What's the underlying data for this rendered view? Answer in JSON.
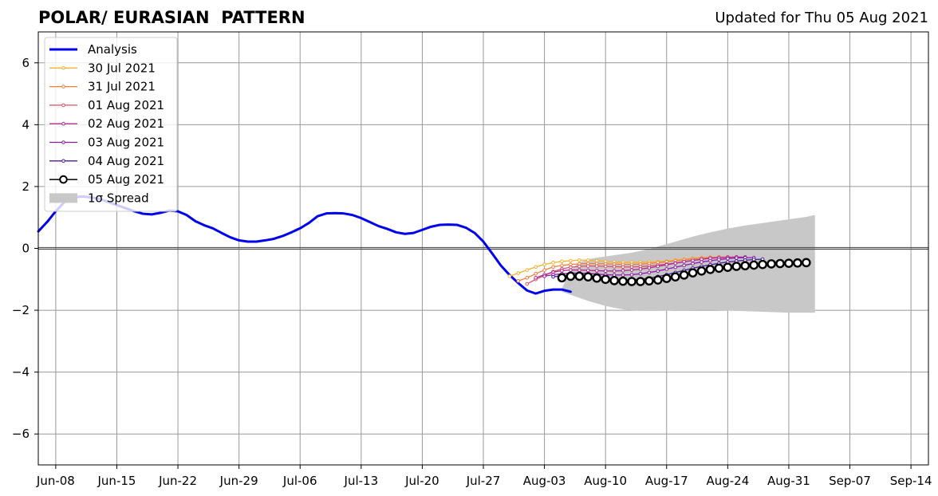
{
  "header": {
    "title": "POLAR/ EURASIAN  PATTERN",
    "updated": "Updated for Thu 05 Aug 2021"
  },
  "chart_data": {
    "type": "line",
    "title": "POLAR/ EURASIAN  PATTERN",
    "subtitle": "Updated for Thu 05 Aug 2021",
    "xlabel": "",
    "ylabel": "",
    "ylim": [
      -7,
      7
    ],
    "xlim": [
      "2021-06-06",
      "2021-09-16"
    ],
    "yticks": [
      -6,
      -4,
      -2,
      0,
      2,
      4,
      6
    ],
    "ytick_labels": [
      "−6",
      "−4",
      "−2",
      "0",
      "2",
      "4",
      "6"
    ],
    "xticks": [
      "2021-06-08",
      "2021-06-15",
      "2021-06-22",
      "2021-06-29",
      "2021-07-06",
      "2021-07-13",
      "2021-07-20",
      "2021-07-27",
      "2021-08-03",
      "2021-08-10",
      "2021-08-17",
      "2021-08-24",
      "2021-08-31",
      "2021-09-07",
      "2021-09-14"
    ],
    "xtick_labels": [
      "Jun-08",
      "Jun-15",
      "Jun-22",
      "Jun-29",
      "Jul-06",
      "Jul-13",
      "Jul-20",
      "Jul-27",
      "Aug-03",
      "Aug-10",
      "Aug-17",
      "Aug-24",
      "Aug-31",
      "Sep-07",
      "Sep-14"
    ],
    "grid": true,
    "legend_position": "top-left",
    "legend": [
      "Analysis",
      "30 Jul 2021",
      "31 Jul 2021",
      "01 Aug 2021",
      "02 Aug 2021",
      "03 Aug 2021",
      "04 Aug 2021",
      "05 Aug 2021",
      "1σ Spread"
    ],
    "colors": {
      "analysis": "#0000ee",
      "zero_line": "#555555",
      "grid": "#999999",
      "spread": "#c8c8c8"
    },
    "analysis": {
      "name": "Analysis",
      "start": "2021-06-06",
      "values": [
        0.55,
        0.85,
        1.2,
        1.5,
        1.65,
        1.68,
        1.65,
        1.6,
        1.5,
        1.4,
        1.3,
        1.2,
        1.12,
        1.1,
        1.15,
        1.22,
        1.2,
        1.08,
        0.88,
        0.75,
        0.65,
        0.5,
        0.36,
        0.26,
        0.22,
        0.22,
        0.26,
        0.31,
        0.4,
        0.52,
        0.65,
        0.82,
        1.04,
        1.13,
        1.14,
        1.13,
        1.08,
        0.98,
        0.85,
        0.72,
        0.63,
        0.52,
        0.47,
        0.5,
        0.6,
        0.7,
        0.76,
        0.77,
        0.76,
        0.67,
        0.5,
        0.22,
        -0.16,
        -0.55,
        -0.86,
        -1.12,
        -1.36,
        -1.46,
        -1.37,
        -1.33,
        -1.33,
        -1.4
      ]
    },
    "forecasts": [
      {
        "name": "30 Jul 2021",
        "color": "#f5b130",
        "start": "2021-07-30",
        "values": [
          -0.9,
          -0.8,
          -0.7,
          -0.6,
          -0.52,
          -0.46,
          -0.42,
          -0.4,
          -0.38,
          -0.38,
          -0.4,
          -0.42,
          -0.44,
          -0.45,
          -0.45,
          -0.45,
          -0.44,
          -0.43,
          -0.41,
          -0.38,
          -0.35,
          -0.32,
          -0.3,
          -0.29,
          -0.29
        ]
      },
      {
        "name": "31 Jul 2021",
        "color": "#f07f3c",
        "start": "2021-07-31",
        "values": [
          -1.05,
          -0.95,
          -0.82,
          -0.7,
          -0.6,
          -0.55,
          -0.52,
          -0.5,
          -0.49,
          -0.49,
          -0.5,
          -0.51,
          -0.52,
          -0.52,
          -0.51,
          -0.49,
          -0.46,
          -0.43,
          -0.4,
          -0.37,
          -0.34,
          -0.31,
          -0.29,
          -0.28,
          -0.28
        ]
      },
      {
        "name": "01 Aug 2021",
        "color": "#d9506a",
        "start": "2021-08-01",
        "values": [
          -1.15,
          -1.0,
          -0.88,
          -0.75,
          -0.66,
          -0.61,
          -0.58,
          -0.57,
          -0.57,
          -0.58,
          -0.59,
          -0.6,
          -0.6,
          -0.59,
          -0.57,
          -0.54,
          -0.51,
          -0.47,
          -0.43,
          -0.39,
          -0.35,
          -0.32,
          -0.3,
          -0.28,
          -0.28
        ]
      },
      {
        "name": "02 Aug 2021",
        "color": "#b12a90",
        "start": "2021-08-02",
        "values": [
          -0.95,
          -0.85,
          -0.77,
          -0.72,
          -0.7,
          -0.7,
          -0.71,
          -0.72,
          -0.73,
          -0.73,
          -0.72,
          -0.7,
          -0.67,
          -0.63,
          -0.58,
          -0.53,
          -0.48,
          -0.43,
          -0.39,
          -0.35,
          -0.32,
          -0.3,
          -0.29,
          -0.28,
          -0.28
        ]
      },
      {
        "name": "03 Aug 2021",
        "color": "#8c1aa8",
        "start": "2021-08-03",
        "values": [
          -0.9,
          -0.85,
          -0.82,
          -0.8,
          -0.8,
          -0.81,
          -0.83,
          -0.85,
          -0.86,
          -0.86,
          -0.85,
          -0.82,
          -0.78,
          -0.73,
          -0.67,
          -0.61,
          -0.55,
          -0.49,
          -0.44,
          -0.4,
          -0.36,
          -0.33,
          -0.31,
          -0.3,
          -0.3
        ]
      },
      {
        "name": "04 Aug 2021",
        "color": "#4b1a9a",
        "start": "2021-08-04",
        "values": [
          -0.92,
          -0.88,
          -0.86,
          -0.88,
          -0.92,
          -0.96,
          -1.0,
          -1.02,
          -1.03,
          -1.02,
          -1.0,
          -0.96,
          -0.91,
          -0.85,
          -0.78,
          -0.71,
          -0.64,
          -0.58,
          -0.53,
          -0.48,
          -0.44,
          -0.41,
          -0.38,
          -0.36,
          -0.35
        ]
      }
    ],
    "current_forecast": {
      "name": "05 Aug 2021",
      "color": "#000000",
      "start": "2021-08-05",
      "values": [
        -0.95,
        -0.9,
        -0.9,
        -0.92,
        -0.96,
        -1.0,
        -1.04,
        -1.06,
        -1.07,
        -1.07,
        -1.05,
        -1.02,
        -0.97,
        -0.92,
        -0.86,
        -0.79,
        -0.73,
        -0.68,
        -0.64,
        -0.61,
        -0.58,
        -0.56,
        -0.54,
        -0.52,
        -0.5,
        -0.49,
        -0.48,
        -0.47,
        -0.46
      ]
    },
    "spread": {
      "name": "1σ Spread",
      "start": "2021-08-05",
      "upper": [
        -1.3,
        -0.7,
        -0.45,
        -0.35,
        -0.3,
        -0.26,
        -0.22,
        -0.18,
        -0.14,
        -0.08,
        -0.02,
        0.06,
        0.14,
        0.22,
        0.3,
        0.38,
        0.45,
        0.52,
        0.58,
        0.64,
        0.69,
        0.74,
        0.78,
        0.82,
        0.86,
        0.9,
        0.94,
        0.98,
        1.02,
        1.08
      ],
      "lower": [
        -1.4,
        -1.5,
        -1.6,
        -1.7,
        -1.78,
        -1.86,
        -1.92,
        -1.97,
        -2.0,
        -2.02,
        -2.02,
        -2.02,
        -2.01,
        -2.0,
        -2.0,
        -2.0,
        -1.99,
        -1.99,
        -2.0,
        -2.01,
        -2.02,
        -2.03,
        -2.04,
        -2.05,
        -2.06,
        -2.07,
        -2.08,
        -2.08,
        -2.08,
        -2.08
      ]
    }
  }
}
